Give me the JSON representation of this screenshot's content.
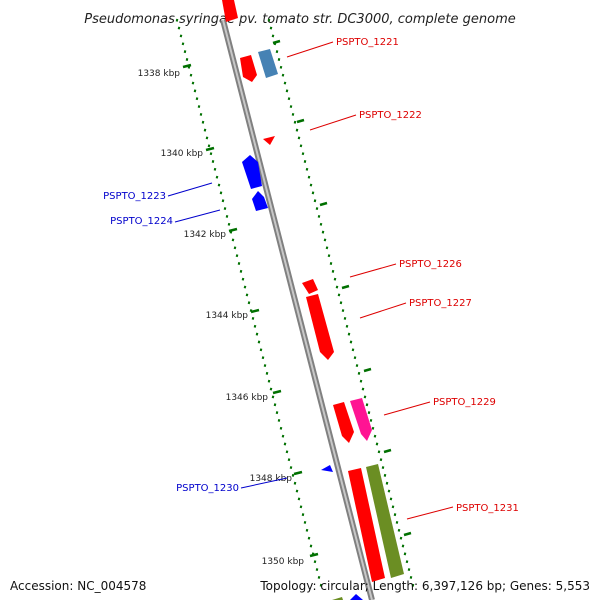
{
  "title": "Pseudomonas syringae pv. tomato str. DC3000, complete genome",
  "footer": {
    "accession": "Accession: NC_004578",
    "summary": "Topology: circular; Length: 6,397,126 bp; Genes: 5,553"
  },
  "ticks": [
    {
      "label": "1338 kbp"
    },
    {
      "label": "1340 kbp"
    },
    {
      "label": "1342 kbp"
    },
    {
      "label": "1344 kbp"
    },
    {
      "label": "1346 kbp"
    },
    {
      "label": "1348 kbp"
    },
    {
      "label": "1350 kbp"
    }
  ],
  "genes": [
    {
      "label": "PSPTO_1221",
      "strand": "forward",
      "color": "#dd0000"
    },
    {
      "label": "PSPTO_1222",
      "strand": "forward",
      "color": "#dd0000"
    },
    {
      "label": "PSPTO_1223",
      "strand": "reverse",
      "color": "#0000cc"
    },
    {
      "label": "PSPTO_1224",
      "strand": "reverse",
      "color": "#0000cc"
    },
    {
      "label": "PSPTO_1226",
      "strand": "forward",
      "color": "#dd0000"
    },
    {
      "label": "PSPTO_1227",
      "strand": "forward",
      "color": "#dd0000"
    },
    {
      "label": "PSPTO_1229",
      "strand": "forward",
      "color": "#dd0000"
    },
    {
      "label": "PSPTO_1230",
      "strand": "reverse",
      "color": "#0000cc"
    },
    {
      "label": "PSPTO_1231",
      "strand": "forward",
      "color": "#dd0000"
    }
  ],
  "colors": {
    "backbone": "#8a8a8a",
    "forward_cds": "#ff0000",
    "reverse_cds": "#0000ff",
    "steel_blue": "#4682b4",
    "pink": "#ff1493",
    "olive": "#6b8e23",
    "tick": "#007000"
  }
}
